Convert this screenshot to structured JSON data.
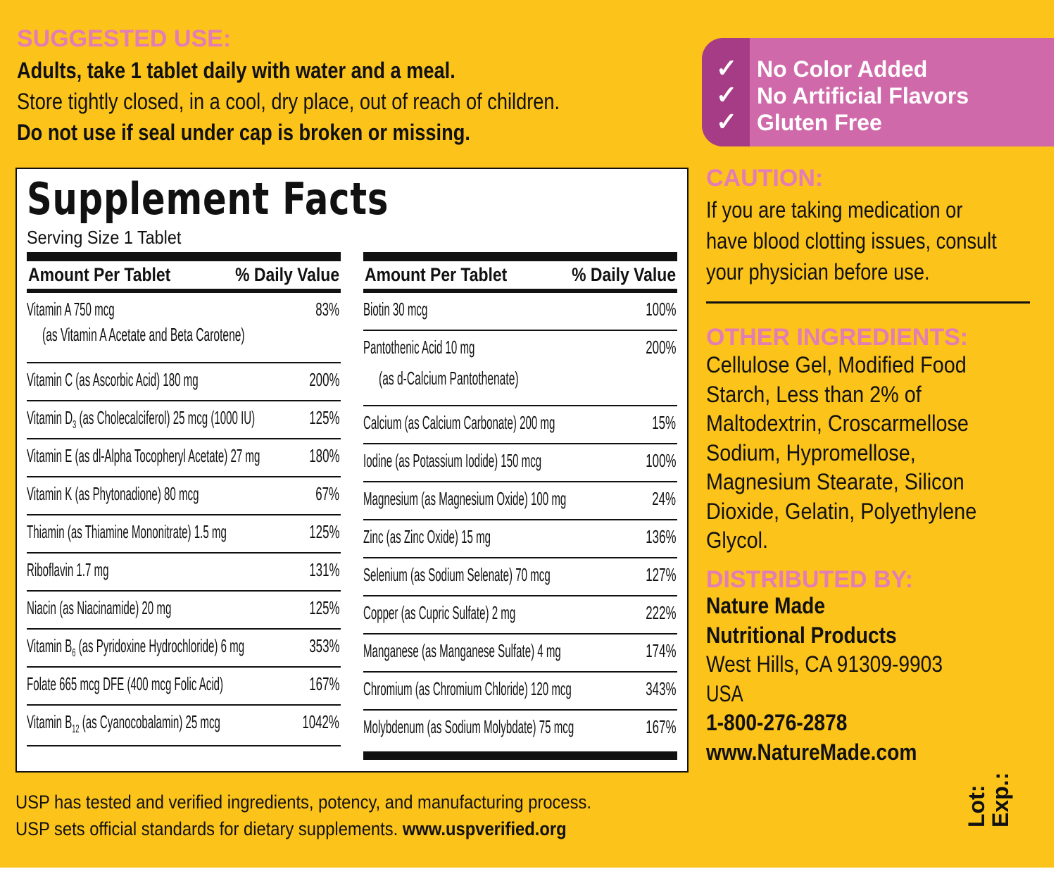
{
  "suggested_use": {
    "heading": "SUGGESTED USE:",
    "line1": "Adults, take 1 tablet daily with water and a meal.",
    "line2": "Store tightly closed, in a cool, dry place, out of reach of children.",
    "line3": "Do not use if seal under cap is broken or missing."
  },
  "badge": {
    "items": [
      "No Color Added",
      "No Artificial Flavors",
      "Gluten Free"
    ],
    "check": "✓",
    "colors": {
      "light": "#d069a9",
      "dark": "#a63c85"
    }
  },
  "facts": {
    "title": "Supplement Facts",
    "serving": "Serving Size 1 Tablet",
    "col_header": "Amount Per Tablet",
    "dv_header": "% Daily Value",
    "left": [
      {
        "name": "Vitamin A  750 mcg",
        "sub": "",
        "rest": "",
        "line2": "(as Vitamin A Acetate and Beta Carotene)",
        "dv": "83%"
      },
      {
        "name": "Vitamin C (as Ascorbic Acid)  180 mg",
        "sub": "",
        "rest": "",
        "dv": "200%"
      },
      {
        "name": "Vitamin D",
        "sub": "3",
        "rest": " (as Cholecalciferol)  25 mcg (1000 IU)",
        "dv": "125%"
      },
      {
        "name": "Vitamin E (as dl-Alpha Tocopheryl Acetate)  27 mg",
        "sub": "",
        "rest": "",
        "dv": "180%"
      },
      {
        "name": "Vitamin K (as Phytonadione)  80 mcg",
        "sub": "",
        "rest": "",
        "dv": "67%"
      },
      {
        "name": "Thiamin (as Thiamine Mononitrate)  1.5 mg",
        "sub": "",
        "rest": "",
        "dv": "125%"
      },
      {
        "name": "Riboflavin  1.7 mg",
        "sub": "",
        "rest": "",
        "dv": "131%"
      },
      {
        "name": "Niacin (as Niacinamide)  20 mg",
        "sub": "",
        "rest": "",
        "dv": "125%"
      },
      {
        "name": "Vitamin B",
        "sub": "6",
        "rest": " (as Pyridoxine Hydrochloride)  6 mg",
        "dv": "353%"
      },
      {
        "name": "Folate  665 mcg DFE (400 mcg Folic Acid)",
        "sub": "",
        "rest": "",
        "dv": "167%"
      },
      {
        "name": "Vitamin B",
        "sub": "12",
        "rest": " (as Cyanocobalamin)  25 mcg",
        "dv": "1042%"
      }
    ],
    "right": [
      {
        "name": "Biotin  30 mcg",
        "sub": "",
        "rest": "",
        "dv": "100%"
      },
      {
        "name": "Pantothenic Acid  10 mg",
        "sub": "",
        "rest": "",
        "line2": "(as d-Calcium Pantothenate)",
        "dv": "200%"
      },
      {
        "name": "Calcium (as Calcium Carbonate)  200 mg",
        "sub": "",
        "rest": "",
        "dv": "15%"
      },
      {
        "name": "Iodine (as Potassium Iodide)  150 mcg",
        "sub": "",
        "rest": "",
        "dv": "100%"
      },
      {
        "name": "Magnesium (as Magnesium Oxide)  100 mg",
        "sub": "",
        "rest": "",
        "dv": "24%"
      },
      {
        "name": "Zinc (as Zinc Oxide)  15 mg",
        "sub": "",
        "rest": "",
        "dv": "136%"
      },
      {
        "name": "Selenium (as Sodium Selenate)  70 mcg",
        "sub": "",
        "rest": "",
        "dv": "127%"
      },
      {
        "name": "Copper (as Cupric Sulfate)  2 mg",
        "sub": "",
        "rest": "",
        "dv": "222%"
      },
      {
        "name": "Manganese (as Manganese Sulfate)  4 mg",
        "sub": "",
        "rest": "",
        "dv": "174%"
      },
      {
        "name": "Chromium (as Chromium Chloride)  120 mcg",
        "sub": "",
        "rest": "",
        "dv": "343%"
      },
      {
        "name": "Molybdenum (as Sodium Molybdate)  75 mcg",
        "sub": "",
        "rest": "",
        "dv": "167%"
      }
    ]
  },
  "caution": {
    "heading": "CAUTION:",
    "lines": [
      "If you are taking medication or",
      "have blood clotting issues, consult",
      "your physician before use."
    ]
  },
  "other": {
    "heading": "OTHER INGREDIENTS:",
    "lines": [
      "Cellulose Gel, Modified Food",
      "Starch, Less than 2% of",
      "Maltodextrin, Croscarmellose",
      "Sodium, Hypromellose,",
      "Magnesium Stearate, Silicon",
      "Dioxide, Gelatin, Polyethylene",
      "Glycol."
    ]
  },
  "distributor": {
    "heading": "DISTRIBUTED BY:",
    "name1": "Nature Made",
    "name2": "Nutritional Products",
    "address": "West Hills, CA 91309-9903",
    "country": "USA",
    "phone": "1-800-276-2878",
    "web": "www.NatureMade.com"
  },
  "usp": {
    "line1": "USP has tested and verified ingredients, potency, and manufacturing process.",
    "line2": "USP sets official standards for dietary supplements.",
    "link": "www.uspverified.org"
  },
  "lot": {
    "lot": "Lot:",
    "exp": "Exp.:"
  }
}
